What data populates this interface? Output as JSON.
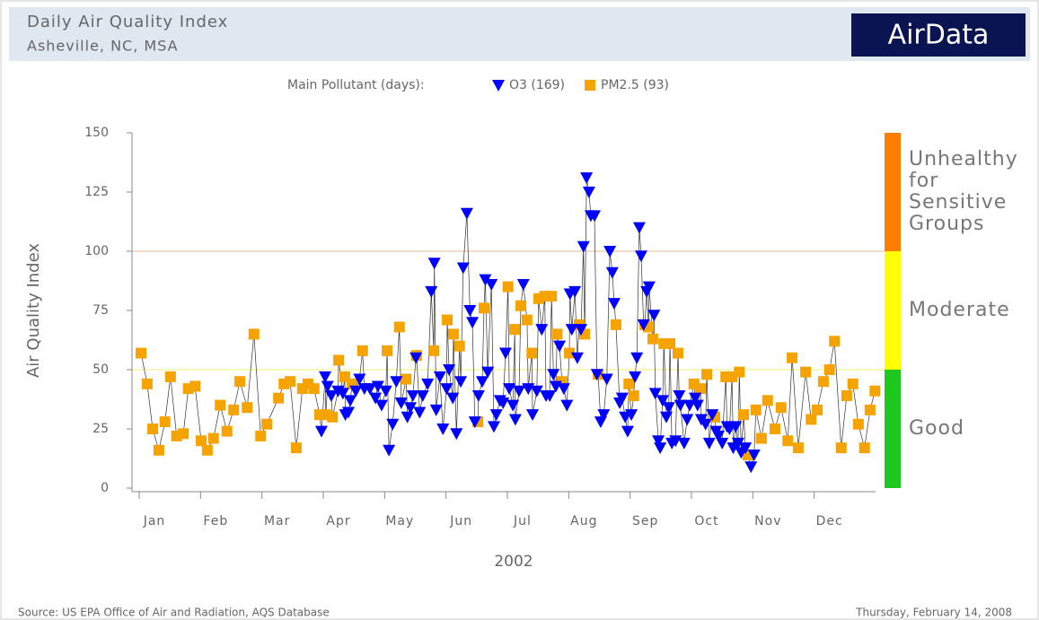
{
  "header": {
    "title": "Daily Air Quality Index",
    "subtitle": "Asheville, NC, MSA",
    "logo": "AirData"
  },
  "footer": {
    "source": "Source: US EPA  Office of Air and Radiation, AQS Database",
    "date": "Thursday, February 14, 2008"
  },
  "chart_data": {
    "type": "scatter",
    "y_label": "Air Quality Index",
    "x_label": "2002",
    "legend_title": "Main Pollutant (days):",
    "xlim": [
      0,
      12
    ],
    "xticks": [
      {
        "value": 0,
        "label": "Jan"
      },
      {
        "value": 1,
        "label": "Feb"
      },
      {
        "value": 2,
        "label": "Mar"
      },
      {
        "value": 3,
        "label": "Apr"
      },
      {
        "value": 4,
        "label": "May"
      },
      {
        "value": 5,
        "label": "Jun"
      },
      {
        "value": 6,
        "label": "Jul"
      },
      {
        "value": 7,
        "label": "Aug"
      },
      {
        "value": 8,
        "label": "Sep"
      },
      {
        "value": 9,
        "label": "Oct"
      },
      {
        "value": 10,
        "label": "Nov"
      },
      {
        "value": 11,
        "label": "Dec"
      }
    ],
    "ylim": [
      0,
      150
    ],
    "yticks": [
      0,
      25,
      50,
      75,
      100,
      125,
      150
    ],
    "bands": [
      {
        "label": "Good",
        "from": 0,
        "to": 50,
        "color": "#1ec81e",
        "line": "#f0f070"
      },
      {
        "label": "Moderate",
        "from": 50,
        "to": 100,
        "color": "#ffff00",
        "line": "#e8b890"
      },
      {
        "label": "Unhealthy for Sensitive Groups",
        "from": 100,
        "to": 150,
        "color": "#ff7e00"
      }
    ],
    "connect": true,
    "series": [
      {
        "name": "O3 (169)",
        "color": "#0000ff",
        "marker": "triangle-down",
        "x": [
          2.97,
          3.03,
          3.07,
          3.13,
          3.24,
          3.32,
          3.36,
          3.41,
          3.44,
          3.53,
          3.59,
          3.67,
          3.76,
          3.85,
          3.89,
          3.95,
          4.02,
          4.07,
          4.13,
          4.19,
          4.27,
          4.37,
          4.42,
          4.46,
          4.51,
          4.57,
          4.62,
          4.7,
          4.76,
          4.81,
          4.84,
          4.9,
          4.95,
          5.01,
          5.05,
          5.11,
          5.17,
          5.24,
          5.28,
          5.34,
          5.39,
          5.43,
          5.47,
          5.53,
          5.59,
          5.64,
          5.68,
          5.74,
          5.78,
          5.82,
          5.88,
          5.93,
          5.97,
          6.03,
          6.09,
          6.13,
          6.19,
          6.26,
          6.34,
          6.41,
          6.48,
          6.56,
          6.63,
          6.69,
          6.75,
          6.79,
          6.85,
          6.92,
          6.97,
          7.02,
          7.05,
          7.1,
          7.14,
          7.2,
          7.24,
          7.29,
          7.33,
          7.36,
          7.42,
          7.46,
          7.52,
          7.57,
          7.62,
          7.67,
          7.71,
          7.74,
          7.83,
          7.87,
          7.92,
          7.96,
          8.02,
          8.08,
          8.11,
          8.15,
          8.18,
          8.22,
          8.27,
          8.31,
          8.39,
          8.41,
          8.46,
          8.49,
          8.53,
          8.59,
          8.63,
          8.68,
          8.74,
          8.8,
          8.82,
          8.88,
          8.93,
          8.97,
          9.06,
          9.1,
          9.16,
          9.23,
          9.29,
          9.34,
          9.4,
          9.44,
          9.5,
          9.58,
          9.62,
          9.68,
          9.72,
          9.76,
          9.81,
          9.88,
          9.97,
          10.02
        ],
        "values": [
          24,
          47,
          43,
          39,
          41,
          40,
          31,
          32,
          37,
          41,
          46,
          42,
          42,
          38,
          43,
          35,
          41,
          16,
          27,
          45,
          36,
          30,
          34,
          39,
          55,
          32,
          39,
          44,
          83,
          95,
          33,
          47,
          25,
          42,
          50,
          38,
          23,
          45,
          93,
          116,
          75,
          70,
          28,
          39,
          45,
          88,
          49,
          86,
          26,
          31,
          37,
          36,
          57,
          42,
          35,
          29,
          41,
          86,
          42,
          31,
          41,
          67,
          39,
          39,
          48,
          43,
          60,
          42,
          35,
          82,
          67,
          83,
          55,
          67,
          102,
          131,
          125,
          115,
          115,
          48,
          28,
          31,
          46,
          100,
          91,
          78,
          36,
          38,
          30,
          24,
          31,
          47,
          55,
          110,
          98,
          69,
          83,
          85,
          73,
          40,
          20,
          17,
          37,
          30,
          34,
          19,
          20,
          39,
          35,
          19,
          29,
          35,
          38,
          35,
          29,
          27,
          19,
          31,
          24,
          22,
          19,
          26,
          25,
          17,
          26,
          19,
          15,
          17,
          9,
          14
        ]
      },
      {
        "name": "PM2.5 (93)",
        "color": "#f5a300",
        "marker": "square",
        "x": [
          0.03,
          0.13,
          0.22,
          0.32,
          0.42,
          0.51,
          0.61,
          0.72,
          0.8,
          0.91,
          1.01,
          1.11,
          1.21,
          1.32,
          1.43,
          1.54,
          1.64,
          1.76,
          1.87,
          1.98,
          2.08,
          2.27,
          2.36,
          2.46,
          2.56,
          2.66,
          2.75,
          2.85,
          2.94,
          3.04,
          3.15,
          3.25,
          3.35,
          3.47,
          3.64,
          4.04,
          4.24,
          4.35,
          4.52,
          4.8,
          5.02,
          5.12,
          5.22,
          5.52,
          5.62,
          6.01,
          6.12,
          6.22,
          6.32,
          6.4,
          6.51,
          6.61,
          6.72,
          6.81,
          6.89,
          7.01,
          7.17,
          7.26,
          7.48,
          7.77,
          7.98,
          8.06,
          8.24,
          8.3,
          8.37,
          8.55,
          8.65,
          8.78,
          9.04,
          9.15,
          9.25,
          9.38,
          9.56,
          9.66,
          9.78,
          9.85,
          9.92,
          10.05,
          10.14,
          10.24,
          10.36,
          10.46,
          10.57,
          10.64,
          10.74,
          10.86,
          10.95,
          11.05,
          11.15,
          11.25,
          11.33,
          11.44,
          11.53,
          11.63,
          11.72,
          11.82,
          11.91,
          11.99
        ],
        "values": [
          57,
          44,
          25,
          16,
          28,
          47,
          22,
          23,
          42,
          43,
          20,
          16,
          21,
          35,
          24,
          33,
          45,
          34,
          65,
          22,
          27,
          38,
          44,
          45,
          17,
          42,
          44,
          42,
          31,
          31,
          30,
          54,
          47,
          44,
          58,
          58,
          68,
          46,
          56,
          58,
          71,
          65,
          60,
          28,
          76,
          85,
          67,
          77,
          71,
          57,
          80,
          81,
          81,
          65,
          45,
          57,
          69,
          65,
          48,
          69,
          44,
          39,
          69,
          68,
          63,
          61,
          61,
          57,
          44,
          42,
          48,
          30,
          47,
          47,
          49,
          31,
          14,
          33,
          21,
          37,
          25,
          34,
          20,
          55,
          17,
          49,
          29,
          33,
          45,
          50,
          62,
          17,
          39,
          44,
          27,
          17,
          33,
          41
        ]
      }
    ]
  }
}
